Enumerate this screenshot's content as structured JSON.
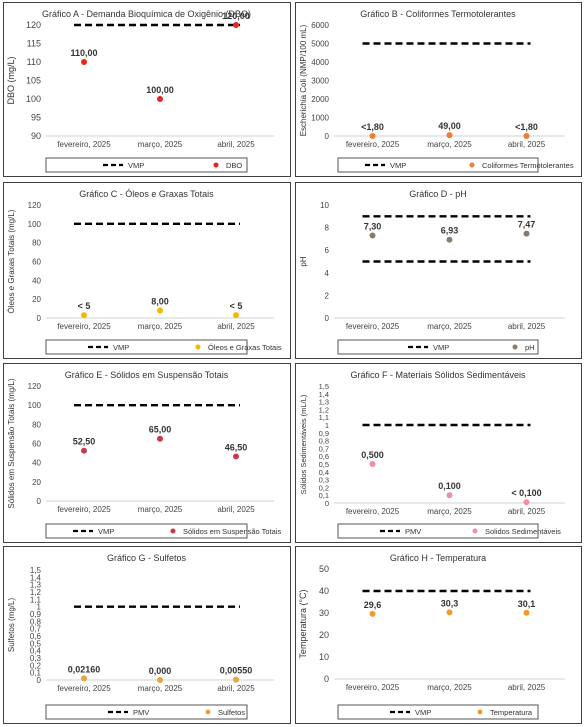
{
  "colors": {
    "dbo": "#e8261d",
    "coliformes": "#ed7d31",
    "oleos": "#f5b800",
    "ph": "#8c7a6a",
    "solidos_suspensao": "#c9374f",
    "solidos_sedimentaveis": "#f08fa0",
    "sulfetos": "#eba33a",
    "temperatura": "#f59a2a",
    "reference_line": "#000000"
  },
  "chart_data": [
    {
      "type": "scatter",
      "title": "Gráfico A - Demanda Bioquímica de Oxigênio (DBO)",
      "ylabel": "DBO (mg/L)",
      "categories": [
        "fevereiro, 2025",
        "março, 2025",
        "abril, 2025"
      ],
      "ylim": [
        90,
        120
      ],
      "yticks": [
        "90",
        "95",
        "100",
        "105",
        "110",
        "115",
        "120"
      ],
      "series": [
        {
          "name": "DBO",
          "values": [
            110,
            100,
            120
          ],
          "labels": [
            "110,00",
            "100,00",
            "120,00"
          ]
        }
      ],
      "reference": {
        "name": "VMP",
        "value": 120
      },
      "legend": "bottom"
    },
    {
      "type": "scatter",
      "title": "Gráfico B - Coliformes Termotolerantes",
      "ylabel": "Escherichia Coli (NMP/100 mL)",
      "categories": [
        "fevereiro, 2025",
        "março, 2025",
        "abril, 2025"
      ],
      "ylim": [
        0,
        6000
      ],
      "yticks": [
        "0",
        "1000",
        "2000",
        "3000",
        "4000",
        "5000",
        "6000"
      ],
      "series": [
        {
          "name": "Coliformes Termotolerantes",
          "values": [
            1.8,
            49,
            1.8
          ],
          "labels": [
            "<1,80",
            "49,00",
            "<1,80"
          ]
        }
      ],
      "reference": {
        "name": "VMP",
        "value": 5000
      },
      "legend": "bottom"
    },
    {
      "type": "scatter",
      "title": "Gráfico C - Óleos e Graxas Totais",
      "ylabel": "Óleos e Graxas Totais (mg/L)",
      "categories": [
        "fevereiro, 2025",
        "março, 2025",
        "abril, 2025"
      ],
      "ylim": [
        0,
        120
      ],
      "yticks": [
        "0",
        "20",
        "40",
        "60",
        "80",
        "100",
        "120"
      ],
      "series": [
        {
          "name": "Óleos e Graxas Totais",
          "values": [
            3,
            8,
            3
          ],
          "labels": [
            "< 5",
            "8,00",
            "< 5"
          ]
        }
      ],
      "reference": {
        "name": "VMP",
        "value": 100
      },
      "legend": "bottom"
    },
    {
      "type": "scatter",
      "title": "Gráfico D - pH",
      "ylabel": "pH",
      "categories": [
        "fevereiro, 2025",
        "março, 2025",
        "abril, 2025"
      ],
      "ylim": [
        0,
        10
      ],
      "yticks": [
        "0",
        "2",
        "4",
        "6",
        "8",
        "10"
      ],
      "series": [
        {
          "name": "pH",
          "values": [
            7.3,
            6.93,
            7.47
          ],
          "labels": [
            "7,30",
            "6,93",
            "7,47"
          ]
        }
      ],
      "reference": {
        "name": "VMP",
        "values": [
          5,
          9
        ]
      },
      "legend": "bottom"
    },
    {
      "type": "scatter",
      "title": "Gráfico E - Sólidos em Suspensão Totais",
      "ylabel": "Sólidos em Suspensão Totais (mg/L)",
      "categories": [
        "fevereiro, 2025",
        "março, 2025",
        "abril, 2025"
      ],
      "ylim": [
        0,
        120
      ],
      "yticks": [
        "0",
        "20",
        "40",
        "60",
        "80",
        "100",
        "120"
      ],
      "series": [
        {
          "name": "Sólidos em Suspensão Totais",
          "values": [
            52.5,
            65,
            46.5
          ],
          "labels": [
            "52,50",
            "65,00",
            "46,50"
          ]
        }
      ],
      "reference": {
        "name": "VMP",
        "value": 100
      },
      "legend": "bottom"
    },
    {
      "type": "scatter",
      "title": "Gráfico F - Materiais Sólidos Sedimentáveis",
      "ylabel": "Sólidos Sedimentáveis (mL/L)",
      "categories": [
        "fevereiro, 2025",
        "março, 2025",
        "abril, 2025"
      ],
      "ylim": [
        0,
        1.5
      ],
      "yticks": [
        "0",
        "0,1",
        "0,2",
        "0,3",
        "0,4",
        "0,5",
        "0,6",
        "0,7",
        "0,8",
        "0,9",
        "1",
        "1,1",
        "1,2",
        "1,3",
        "1,4",
        "1,5"
      ],
      "series": [
        {
          "name": "Solidos Sedimentáveis",
          "values": [
            0.5,
            0.1,
            0.01
          ],
          "labels": [
            "0,500",
            "0,100",
            "< 0,100"
          ]
        }
      ],
      "reference": {
        "name": "PMV",
        "value": 1
      },
      "legend": "bottom"
    },
    {
      "type": "scatter",
      "title": "Gráfico G - Sulfetos",
      "ylabel": "Sulfetos (mg/L)",
      "categories": [
        "fevereiro, 2025",
        "março, 2025",
        "abril, 2025"
      ],
      "ylim": [
        0,
        1.5
      ],
      "yticks": [
        "0",
        "0,1",
        "0,2",
        "0,3",
        "0,4",
        "0,5",
        "0,6",
        "0,7",
        "0,8",
        "0,9",
        "1",
        "1,1",
        "1,2",
        "1,3",
        "1,4",
        "1,5"
      ],
      "series": [
        {
          "name": "Sulfetos",
          "values": [
            0.0216,
            0,
            0.0055
          ],
          "labels": [
            "0,02160",
            "0,000",
            "0,00550"
          ]
        }
      ],
      "reference": {
        "name": "PMV",
        "value": 1
      },
      "legend": "bottom"
    },
    {
      "type": "scatter",
      "title": "Gráfico H - Temperatura",
      "ylabel": "Temperatura (°C)",
      "categories": [
        "fevereiro, 2025",
        "março, 2025",
        "abril, 2025"
      ],
      "ylim": [
        0,
        50
      ],
      "yticks": [
        "0",
        "10",
        "20",
        "30",
        "40",
        "50"
      ],
      "series": [
        {
          "name": "Temperatura",
          "values": [
            29.6,
            30.3,
            30.1
          ],
          "labels": [
            "29,6",
            "30,3",
            "30,1"
          ]
        }
      ],
      "reference": {
        "name": "VMP",
        "value": 40
      },
      "legend": "bottom"
    }
  ]
}
